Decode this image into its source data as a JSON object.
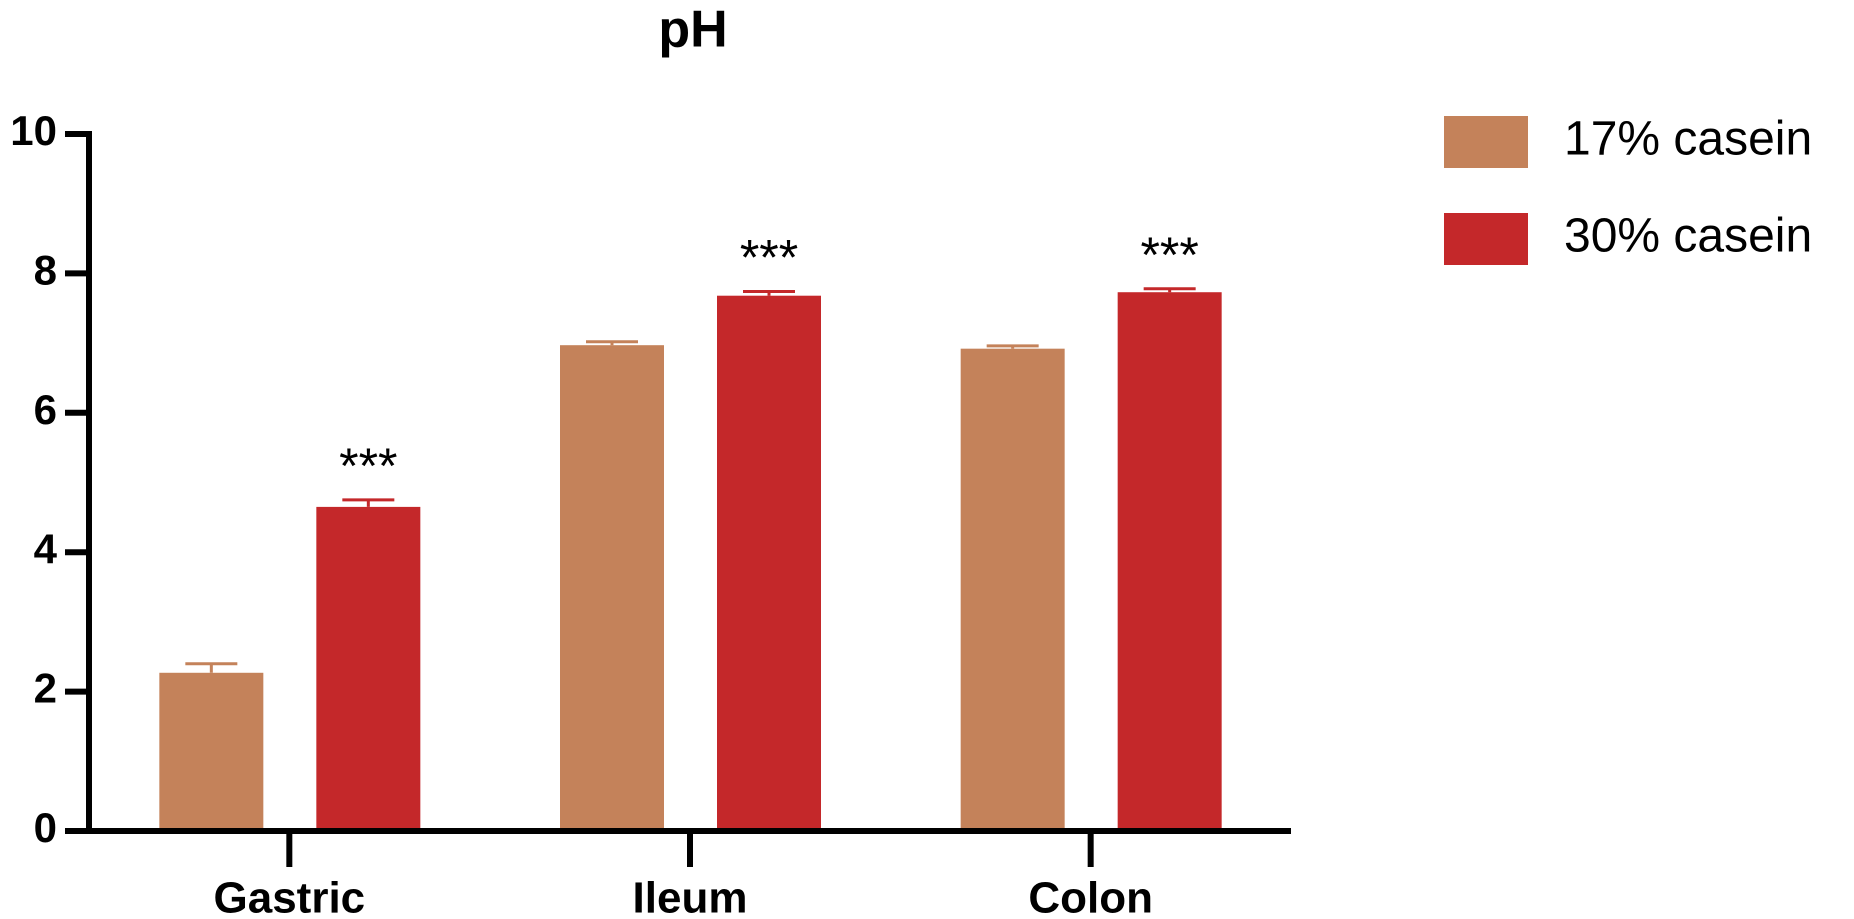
{
  "chart_data": {
    "type": "bar",
    "title": "pH",
    "categories": [
      "Gastric",
      "Ileum",
      "Colon"
    ],
    "series": [
      {
        "name": "17% casein",
        "color": "#c4825a",
        "values": [
          2.27,
          6.97,
          6.92
        ],
        "errors": [
          0.13,
          0.05,
          0.04
        ]
      },
      {
        "name": "30% casein",
        "color": "#c4282a",
        "values": [
          4.65,
          7.68,
          7.73
        ],
        "errors": [
          0.1,
          0.06,
          0.05
        ],
        "significance": [
          "***",
          "***",
          "***"
        ]
      }
    ],
    "ylim": [
      0,
      10
    ],
    "yticks": [
      0,
      2,
      4,
      6,
      8,
      10
    ],
    "grid": false,
    "legend": "right"
  }
}
